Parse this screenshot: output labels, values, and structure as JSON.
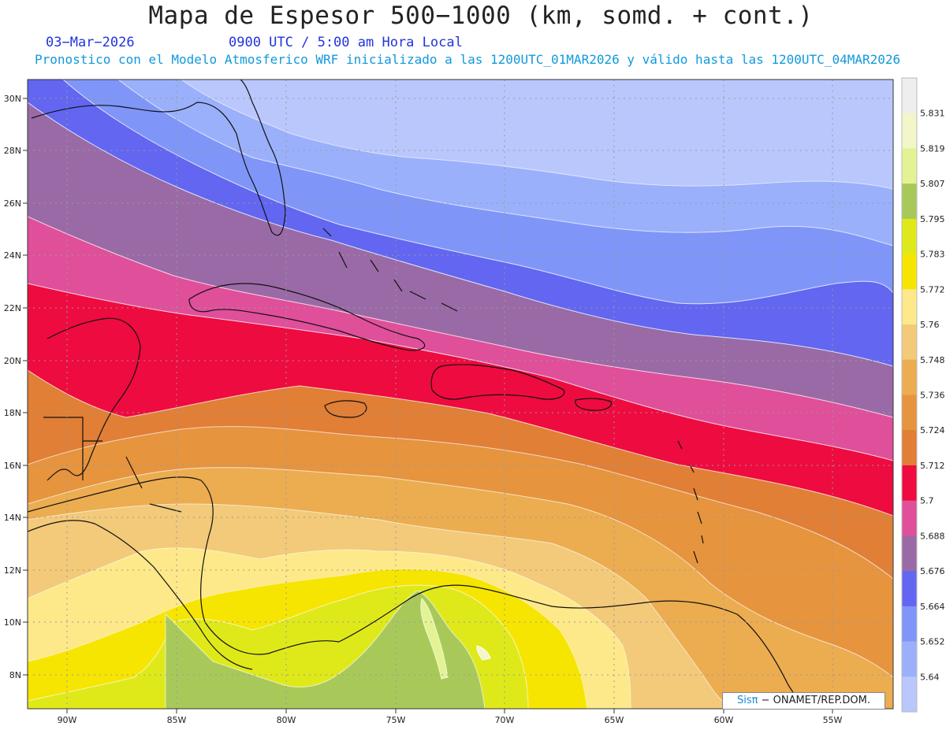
{
  "header": {
    "title": "Mapa de Espesor 500−1000 (km, somd. + cont.)",
    "date": "03−Mar−2026",
    "time": "0900 UTC / 5:00 am Hora Local",
    "subtitle": "Pronostico con el Modelo Atmosferico WRF inicializado a las 1200UTC_01MAR2026 y válido hasta las  1200UTC_04MAR2026"
  },
  "map": {
    "lon_ticks": [
      "90W",
      "85W",
      "80W",
      "75W",
      "70W",
      "65W",
      "60W",
      "55W"
    ],
    "lat_ticks": [
      "30N",
      "28N",
      "26N",
      "24N",
      "22N",
      "20N",
      "18N",
      "16N",
      "14N",
      "12N",
      "10N",
      "8N"
    ]
  },
  "legend": {
    "levels": [
      "5.831",
      "5.819",
      "5.807",
      "5.795",
      "5.783",
      "5.772",
      "5.76",
      "5.748",
      "5.736",
      "5.724",
      "5.712",
      "5.7",
      "5.688",
      "5.676",
      "5.664",
      "5.652",
      "5.64"
    ],
    "colors": [
      "#eeeeee",
      "#f2f6c8",
      "#e3f394",
      "#a8c95a",
      "#dfe91a",
      "#f6e500",
      "#fde98a",
      "#f3c97a",
      "#ecac50",
      "#e6943e",
      "#e07f35",
      "#ee0b3f",
      "#e04f9a",
      "#9a6aa6",
      "#6266f0",
      "#7f96f8",
      "#9ab0fb",
      "#b9c7fd"
    ]
  },
  "credit": {
    "sis": "Sisπ",
    "rest": " − ONAMET/REP.DOM."
  }
}
